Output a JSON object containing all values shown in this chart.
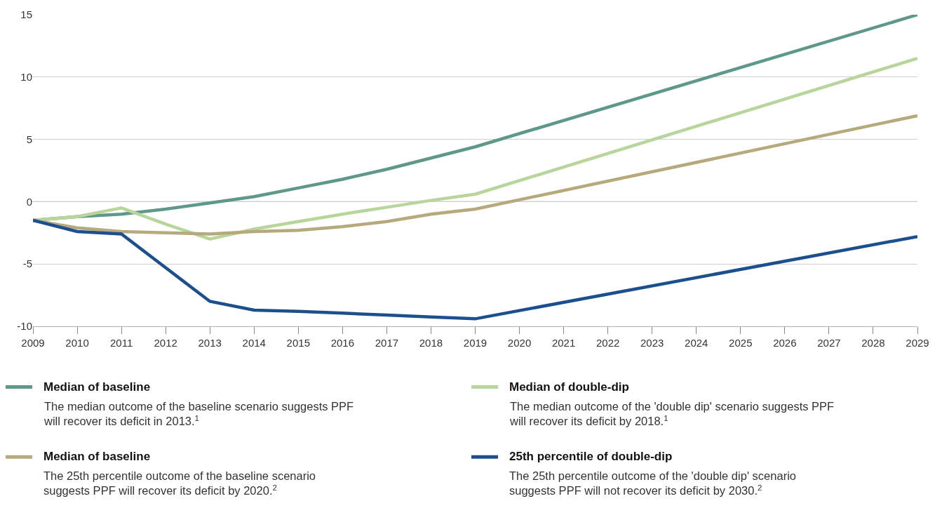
{
  "chart_data": {
    "type": "line",
    "xlim": [
      2009,
      2029
    ],
    "xticks": [
      2009,
      2010,
      2011,
      2012,
      2013,
      2014,
      2015,
      2016,
      2017,
      2018,
      2019,
      2020,
      2021,
      2022,
      2023,
      2024,
      2025,
      2026,
      2027,
      2028,
      2029
    ],
    "ylim": [
      -10,
      15
    ],
    "yticks": [
      -10,
      -5,
      0,
      5,
      10,
      15
    ],
    "grid": "y",
    "legend": "bottom",
    "marker": "none",
    "line_style": "solid",
    "ref_lines": [
      {
        "axis": "y",
        "value": 0,
        "color": "#3a3a3a"
      }
    ],
    "series": [
      {
        "name": "Median of baseline",
        "color": "#5e988a",
        "x": [
          2009,
          2010,
          2011,
          2012,
          2013,
          2014,
          2015,
          2016,
          2017,
          2018,
          2019,
          2029
        ],
        "values": [
          -1.5,
          -1.2,
          -1.0,
          -0.6,
          -0.1,
          0.4,
          1.1,
          1.8,
          2.6,
          3.5,
          4.4,
          15.0
        ]
      },
      {
        "name": "Median of double-dip",
        "color": "#b8d59b",
        "x": [
          2009,
          2010,
          2011,
          2012,
          2013,
          2014,
          2015,
          2016,
          2017,
          2018,
          2019,
          2029
        ],
        "values": [
          -1.5,
          -1.2,
          -0.5,
          -1.8,
          -3.0,
          -2.2,
          -1.6,
          -1.0,
          -0.45,
          0.1,
          0.6,
          11.5
        ]
      },
      {
        "name": "Median of baseline",
        "color": "#b6a97c",
        "x": [
          2009,
          2010,
          2011,
          2012,
          2013,
          2014,
          2015,
          2016,
          2017,
          2018,
          2019,
          2029
        ],
        "values": [
          -1.5,
          -2.1,
          -2.4,
          -2.5,
          -2.6,
          -2.4,
          -2.3,
          -2.0,
          -1.6,
          -1.0,
          -0.6,
          6.9
        ]
      },
      {
        "name": "25th percentile of double-dip",
        "color": "#1c4f8e",
        "x": [
          2009,
          2010,
          2011,
          2012,
          2013,
          2014,
          2015,
          2016,
          2017,
          2018,
          2019,
          2029
        ],
        "values": [
          -1.5,
          -2.4,
          -2.6,
          -5.3,
          -8.0,
          -8.7,
          -8.8,
          -8.95,
          -9.1,
          -9.25,
          -9.4,
          -2.8
        ]
      }
    ],
    "annotations": [
      "The median outcome of the baseline scenario suggests PPF will recover its deficit in 2013.$^{1}$",
      "The median outcome of the 'double dip' scenario suggests PPF will recover its deficit by 2018.$^{1}$",
      "The 25th percentile outcome of the baseline scenario suggests PPF will recover its deficit by 2020.$^{2}$",
      "The 25th percentile outcome of the 'double dip' scenario suggests PPF will not recover its deficit by 2030.$^{2}$"
    ]
  }
}
